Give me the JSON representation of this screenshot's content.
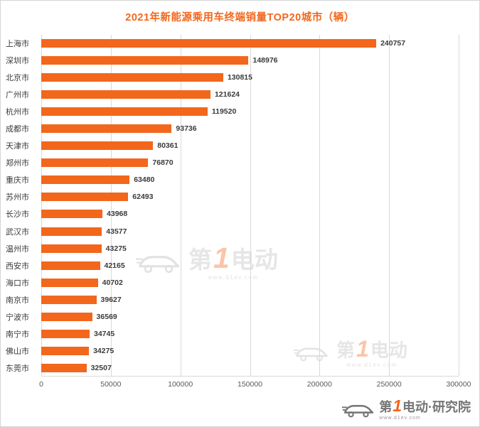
{
  "chart_data": {
    "type": "bar",
    "orientation": "horizontal",
    "title": "2021年新能源乘用车终端销量TOP20城市（辆）",
    "xlabel": "",
    "ylabel": "",
    "categories": [
      "上海市",
      "深圳市",
      "北京市",
      "广州市",
      "杭州市",
      "成都市",
      "天津市",
      "郑州市",
      "重庆市",
      "苏州市",
      "长沙市",
      "武汉市",
      "温州市",
      "西安市",
      "海口市",
      "南京市",
      "宁波市",
      "南宁市",
      "佛山市",
      "东莞市"
    ],
    "values": [
      240757,
      148976,
      130815,
      121624,
      119520,
      93736,
      80361,
      76870,
      63480,
      62493,
      43968,
      43577,
      43275,
      42165,
      40702,
      39627,
      36569,
      34745,
      34275,
      32507
    ],
    "xlim": [
      0,
      300000
    ],
    "xticks": [
      0,
      50000,
      100000,
      150000,
      200000,
      250000,
      300000
    ],
    "grid": "vertical",
    "legend": "none"
  },
  "logo": {
    "char1": "第",
    "num": "1",
    "rest": "电动",
    "suffix": "·研究院",
    "url": "www.d1ev.com"
  },
  "colors": {
    "bar": "#f2671c",
    "title": "#f2671c",
    "grid": "#d9d9d9",
    "label": "#3a3a3a",
    "value": "#3a3a3a",
    "tick": "#595959",
    "logo_gray": "#757575",
    "watermark_gray": "#e6e6e6"
  }
}
